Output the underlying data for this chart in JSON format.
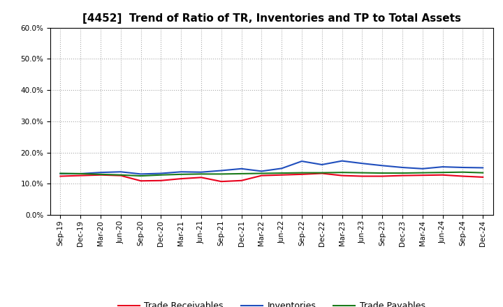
{
  "title": "[4452]  Trend of Ratio of TR, Inventories and TP to Total Assets",
  "x_labels": [
    "Sep-19",
    "Dec-19",
    "Mar-20",
    "Jun-20",
    "Sep-20",
    "Dec-20",
    "Mar-21",
    "Jun-21",
    "Sep-21",
    "Dec-21",
    "Mar-22",
    "Jun-22",
    "Sep-22",
    "Dec-22",
    "Mar-23",
    "Jun-23",
    "Sep-23",
    "Dec-23",
    "Mar-24",
    "Jun-24",
    "Sep-24",
    "Dec-24"
  ],
  "trade_receivables": [
    0.124,
    0.126,
    0.128,
    0.126,
    0.109,
    0.11,
    0.116,
    0.12,
    0.107,
    0.11,
    0.126,
    0.128,
    0.13,
    0.133,
    0.126,
    0.124,
    0.124,
    0.126,
    0.127,
    0.128,
    0.124,
    0.121
  ],
  "inventories": [
    0.132,
    0.132,
    0.136,
    0.138,
    0.131,
    0.133,
    0.138,
    0.137,
    0.142,
    0.148,
    0.14,
    0.149,
    0.172,
    0.161,
    0.173,
    0.165,
    0.158,
    0.152,
    0.148,
    0.154,
    0.152,
    0.151
  ],
  "trade_payables": [
    0.133,
    0.132,
    0.13,
    0.128,
    0.125,
    0.128,
    0.13,
    0.131,
    0.131,
    0.132,
    0.133,
    0.134,
    0.135,
    0.135,
    0.136,
    0.135,
    0.134,
    0.134,
    0.135,
    0.136,
    0.137,
    0.135
  ],
  "color_tr": "#e8001c",
  "color_inv": "#1f4ebd",
  "color_tp": "#1a7a1a",
  "ylim": [
    0.0,
    0.6
  ],
  "yticks": [
    0.0,
    0.1,
    0.2,
    0.3,
    0.4,
    0.5,
    0.6
  ],
  "background_color": "#ffffff",
  "grid_color": "#aaaaaa",
  "legend_tr": "Trade Receivables",
  "legend_inv": "Inventories",
  "legend_tp": "Trade Payables",
  "title_fontsize": 11,
  "tick_fontsize": 7.5,
  "legend_fontsize": 9
}
